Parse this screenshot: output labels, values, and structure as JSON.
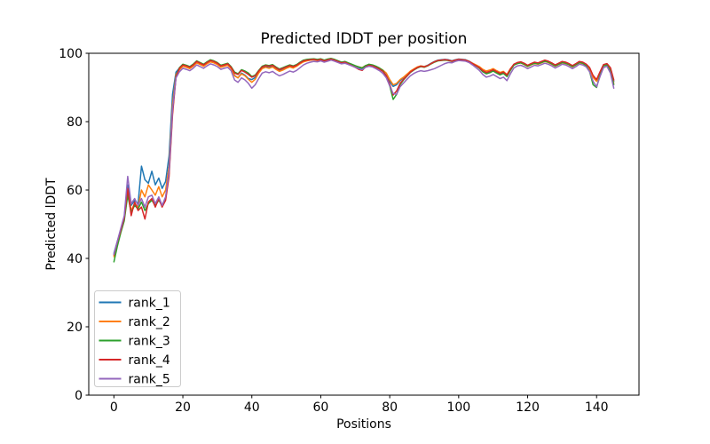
{
  "chart_data": {
    "type": "line",
    "title": "Predicted lDDT per position",
    "xlabel": "Positions",
    "ylabel": "Predicted lDDT",
    "xlim": [
      -7.3,
      152.3
    ],
    "ylim": [
      0,
      100
    ],
    "xticks": [
      0,
      20,
      40,
      60,
      80,
      100,
      120,
      140
    ],
    "yticks": [
      0,
      20,
      40,
      60,
      80,
      100
    ],
    "grid": false,
    "legend_position": "lower-left",
    "x_start": 0,
    "x_step": 1,
    "series": [
      {
        "name": "rank_1",
        "color": "#1f77b4",
        "values": [
          41.5,
          45,
          48.5,
          52,
          61.5,
          55.5,
          57,
          56,
          67,
          63,
          62,
          65.5,
          61.5,
          63.5,
          60.5,
          62.5,
          70,
          88,
          94.5,
          95.7,
          96.7,
          96.4,
          96,
          96.7,
          97.7,
          97.2,
          96.7,
          97.3,
          97.9,
          97.6,
          97.1,
          96.3,
          96.6,
          96.9,
          95.9,
          93.5,
          92.8,
          94.2,
          93.6,
          92.6,
          92.3,
          92.9,
          94.4,
          95.7,
          96.1,
          95.8,
          96.2,
          95.5,
          94.9,
          95.3,
          95.8,
          96.2,
          95.9,
          96.4,
          97.1,
          97.7,
          97.9,
          98,
          98.1,
          97.9,
          98.1,
          97.7,
          98,
          98.2,
          97.9,
          97.5,
          97.1,
          97.3,
          96.9,
          96.5,
          96.1,
          95.7,
          95.4,
          96.1,
          96.5,
          96.3,
          95.9,
          95.4,
          94.7,
          93.6,
          91.8,
          90.3,
          90.8,
          92,
          92.8,
          93.7,
          94.6,
          95.3,
          95.9,
          96.3,
          96.1,
          96.5,
          97.1,
          97.6,
          98,
          98.1,
          98.2,
          98.1,
          97.8,
          98.1,
          98.3,
          98.2,
          98.1,
          97.7,
          97.1,
          96.5,
          95.9,
          94.9,
          94.3,
          94.6,
          95.1,
          94.5,
          94,
          94.4,
          93.5,
          95.3,
          96.7,
          97.2,
          97.4,
          97,
          96.4,
          96.9,
          97.3,
          97.1,
          97.5,
          97.9,
          97.6,
          97.1,
          96.5,
          97,
          97.5,
          97.3,
          96.9,
          96.3,
          96.9,
          97.5,
          97.3,
          96.7,
          95.6,
          93.2,
          92,
          94.4,
          96.6,
          96.9,
          95.7,
          91.8
        ]
      },
      {
        "name": "rank_2",
        "color": "#ff7f0e",
        "values": [
          40.5,
          44.5,
          48,
          51.5,
          60,
          54,
          56,
          55,
          60,
          58,
          61.5,
          60,
          58.5,
          61,
          58,
          60,
          67,
          85,
          93.8,
          95.2,
          96.2,
          95.9,
          95.5,
          96.2,
          97.2,
          96.7,
          96.2,
          96.9,
          97.5,
          97.2,
          96.7,
          95.9,
          96.2,
          96.5,
          95.5,
          93.4,
          92.8,
          94,
          93.4,
          92.4,
          91.5,
          92.4,
          94.2,
          95.5,
          95.9,
          95.6,
          96,
          95.3,
          94.7,
          95.1,
          95.6,
          96,
          95.7,
          96.2,
          96.9,
          97.5,
          97.8,
          98,
          98.1,
          97.9,
          98.1,
          97.7,
          98,
          98.2,
          97.9,
          97.6,
          97.3,
          97.5,
          97.1,
          96.7,
          96.3,
          96,
          95.8,
          96.4,
          96.7,
          96.5,
          96.1,
          95.7,
          95.1,
          94.2,
          92.3,
          90.8,
          91.2,
          92.3,
          93,
          93.9,
          94.8,
          95.4,
          96,
          96.3,
          96.1,
          96.4,
          97,
          97.5,
          97.9,
          98,
          98.1,
          98,
          97.7,
          98,
          98.2,
          98.1,
          98,
          97.6,
          97.1,
          96.6,
          96.1,
          95.3,
          94.8,
          95.1,
          95.5,
          94.9,
          94.4,
          94.7,
          93.8,
          95.5,
          96.7,
          97,
          97.2,
          96.7,
          96.1,
          96.6,
          97,
          96.8,
          97.2,
          97.6,
          97.3,
          96.8,
          96.2,
          96.7,
          97.2,
          97,
          96.6,
          96,
          96.6,
          97.2,
          97,
          96.4,
          95.2,
          92.9,
          91.8,
          94.1,
          96.4,
          96.7,
          95.3,
          91.2
        ]
      },
      {
        "name": "rank_3",
        "color": "#2ca02c",
        "values": [
          39,
          43.5,
          47.5,
          51,
          58.5,
          53.5,
          55.5,
          54.5,
          56.5,
          54,
          56,
          57,
          55.5,
          57,
          55.5,
          57.5,
          65,
          83,
          93.2,
          95.8,
          96.8,
          96.5,
          96.1,
          96.8,
          97.8,
          97.3,
          96.8,
          97.5,
          98.1,
          97.8,
          97.3,
          96.5,
          96.8,
          97.1,
          96.1,
          94.5,
          94,
          95.2,
          94.8,
          94.2,
          93.2,
          93.6,
          95,
          96.2,
          96.6,
          96.4,
          96.7,
          96,
          95.4,
          95.8,
          96.2,
          96.6,
          96.3,
          96.7,
          97.4,
          98,
          98.2,
          98.3,
          98.4,
          98.2,
          98.4,
          98,
          98.3,
          98.5,
          98.2,
          97.8,
          97.4,
          97.6,
          97.2,
          96.8,
          96.4,
          96,
          95.7,
          96.4,
          96.8,
          96.6,
          96.2,
          95.7,
          95,
          93.2,
          90.5,
          86.5,
          88,
          90.8,
          92.2,
          93.3,
          94.4,
          95.1,
          95.7,
          96.1,
          95.9,
          96.3,
          96.9,
          97.4,
          97.8,
          97.9,
          98,
          97.9,
          97.6,
          97.9,
          98.1,
          98,
          97.9,
          97.5,
          96.9,
          96.3,
          95.6,
          94.6,
          94,
          94.3,
          94.8,
          94.2,
          93.7,
          94.1,
          93.2,
          95,
          96.5,
          97,
          97.2,
          96.8,
          96.2,
          96.7,
          97.1,
          96.9,
          97.3,
          97.7,
          97.4,
          96.9,
          96.3,
          96.8,
          97.3,
          97.1,
          96.7,
          96.1,
          96.7,
          97.3,
          97.1,
          96.3,
          94.6,
          90.8,
          90,
          93.8,
          96.3,
          96.6,
          94.8,
          90.8
        ]
      },
      {
        "name": "rank_4",
        "color": "#d62728",
        "values": [
          41,
          44.8,
          48.2,
          51.8,
          60.5,
          52.5,
          56.5,
          54,
          55,
          51.5,
          56.5,
          57.5,
          55,
          57.5,
          55,
          57,
          64,
          82,
          93,
          95.6,
          96.6,
          96.3,
          95.9,
          96.6,
          97.6,
          97.1,
          96.6,
          97.3,
          97.9,
          97.6,
          97.1,
          96.3,
          96.6,
          96.9,
          95.9,
          94.2,
          93.8,
          95,
          94.5,
          93.8,
          93,
          93.4,
          94.8,
          96,
          96.4,
          96.2,
          96.5,
          95.8,
          95.2,
          95.6,
          96,
          96.4,
          96.1,
          96.5,
          97.2,
          97.8,
          98,
          98.1,
          98.2,
          98,
          98.2,
          97.8,
          98.1,
          98.3,
          98,
          97.6,
          97.2,
          97.4,
          96.9,
          96.4,
          95.9,
          95.3,
          95,
          96,
          96.5,
          96.3,
          95.9,
          95.4,
          94.7,
          93.4,
          91,
          87.8,
          89,
          91.2,
          92.4,
          93.4,
          94.5,
          95.2,
          95.8,
          96.2,
          96,
          96.4,
          97,
          97.5,
          97.9,
          98,
          98.1,
          98,
          97.7,
          98,
          98.2,
          98.1,
          98,
          97.6,
          97,
          96.4,
          95.8,
          94.9,
          94.4,
          94.7,
          95.2,
          94.6,
          94.1,
          94.5,
          93.6,
          95.4,
          96.8,
          97.3,
          97.5,
          97.1,
          96.5,
          97,
          97.4,
          97.2,
          97.6,
          98,
          97.7,
          97.2,
          96.6,
          97.1,
          97.6,
          97.4,
          97,
          96.4,
          97,
          97.6,
          97.4,
          96.8,
          95.8,
          93.5,
          92.3,
          94.6,
          96.7,
          97,
          95.8,
          92.2
        ]
      },
      {
        "name": "rank_5",
        "color": "#9467bd",
        "values": [
          41.2,
          45,
          48.8,
          52.5,
          64,
          56,
          57.5,
          55.5,
          57.5,
          55,
          58,
          58.5,
          56,
          58,
          55.5,
          58,
          65.5,
          83.5,
          92.8,
          94.6,
          95.6,
          95.3,
          94.9,
          95.6,
          96.6,
          96.1,
          95.6,
          96.3,
          96.9,
          96.6,
          96.1,
          95.3,
          95.6,
          95.9,
          94.9,
          92.2,
          91.5,
          92.8,
          92.2,
          91.2,
          89.8,
          90.8,
          92.6,
          94.2,
          94.6,
          94.3,
          94.7,
          94,
          93.4,
          93.8,
          94.3,
          94.8,
          94.5,
          95,
          95.8,
          96.6,
          97.1,
          97.4,
          97.6,
          97.5,
          97.8,
          97.4,
          97.7,
          98,
          97.7,
          97.3,
          96.9,
          97.1,
          96.7,
          96.3,
          95.9,
          95.5,
          95.2,
          95.9,
          96.2,
          96,
          95.5,
          94.9,
          94.1,
          92.8,
          90.5,
          88.2,
          88,
          90.2,
          91.3,
          92.4,
          93.4,
          94.1,
          94.6,
          94.9,
          94.7,
          94.9,
          95.2,
          95.5,
          96,
          96.5,
          97,
          97.3,
          97.2,
          97.6,
          97.9,
          97.8,
          97.7,
          97.3,
          96.6,
          95.8,
          95,
          93.8,
          93,
          93.3,
          93.8,
          93.2,
          92.6,
          93,
          92,
          94,
          95.7,
          96.3,
          96.5,
          96.1,
          95.5,
          96,
          96.5,
          96.3,
          96.7,
          97.1,
          96.8,
          96.3,
          95.7,
          96.2,
          96.8,
          96.6,
          96.1,
          95.5,
          96.1,
          96.8,
          96.6,
          96,
          94.6,
          91.8,
          90.2,
          93.2,
          95.8,
          96.2,
          94.2,
          89.8
        ]
      }
    ]
  },
  "style": {
    "spine_color": "#000000",
    "legend_border_color": "#cccccc",
    "background": "#ffffff"
  }
}
